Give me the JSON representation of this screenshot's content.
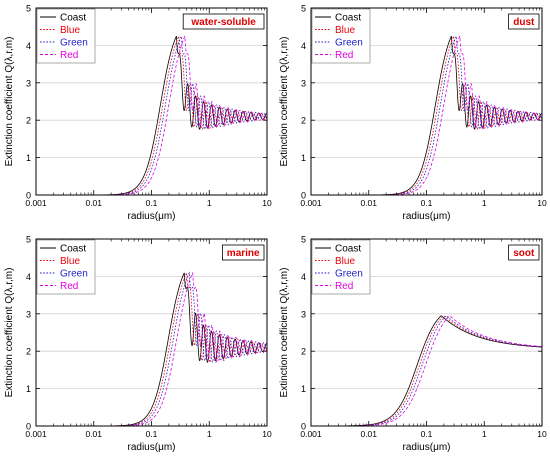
{
  "chart_data": [
    {
      "type": "line",
      "panel_label": "water-soluble",
      "xlabel": "radius(μm)",
      "ylabel": "Extinction coefficient Q(λ,r,m)",
      "xscale": "log",
      "xlim": [
        0.001,
        10
      ],
      "ylim": [
        0,
        5
      ],
      "xticks": [
        "0.001",
        "0.01",
        "0.1",
        "1",
        "10"
      ],
      "yticks": [
        "0",
        "1",
        "2",
        "3",
        "4",
        "5"
      ],
      "grid": "horizontal",
      "legend_position": "top-left",
      "params": {
        "peak_r": 0.27,
        "peak_q": 4.25,
        "ripple_amp": 0.8,
        "mode": "oscillating"
      },
      "series": [
        {
          "name": "Coast",
          "color": "#000000",
          "dash": "solid",
          "scale": 1.0
        },
        {
          "name": "Blue",
          "color": "#e8000b",
          "dash": "dotted",
          "scale": 1.1
        },
        {
          "name": "Green",
          "color": "#1f1fd0",
          "dash": "dotted",
          "scale": 1.22
        },
        {
          "name": "Red",
          "color": "#e000e0",
          "dash": "dashed",
          "scale": 1.4
        }
      ]
    },
    {
      "type": "line",
      "panel_label": "dust",
      "xlabel": "radius(μm)",
      "ylabel": "Extinction coefficient Q(λ,r,m)",
      "xscale": "log",
      "xlim": [
        0.001,
        10
      ],
      "ylim": [
        0,
        5
      ],
      "xticks": [
        "0.001",
        "0.01",
        "0.1",
        "1",
        "10"
      ],
      "yticks": [
        "0",
        "1",
        "2",
        "3",
        "4",
        "5"
      ],
      "grid": "horizontal",
      "legend_position": "top-left",
      "params": {
        "peak_r": 0.27,
        "peak_q": 4.25,
        "ripple_amp": 0.8,
        "mode": "oscillating"
      },
      "series": [
        {
          "name": "Coast",
          "color": "#000000",
          "dash": "solid",
          "scale": 1.0
        },
        {
          "name": "Blue",
          "color": "#e8000b",
          "dash": "dotted",
          "scale": 1.1
        },
        {
          "name": "Green",
          "color": "#1f1fd0",
          "dash": "dotted",
          "scale": 1.22
        },
        {
          "name": "Red",
          "color": "#e000e0",
          "dash": "dashed",
          "scale": 1.4
        }
      ]
    },
    {
      "type": "line",
      "panel_label": "marine",
      "xlabel": "radius(μm)",
      "ylabel": "Extinction coefficient Q(λ,r,m)",
      "xscale": "log",
      "xlim": [
        0.001,
        10
      ],
      "ylim": [
        0,
        5
      ],
      "xticks": [
        "0.001",
        "0.01",
        "0.1",
        "1",
        "10"
      ],
      "yticks": [
        "0",
        "1",
        "2",
        "3",
        "4",
        "5"
      ],
      "grid": "horizontal",
      "legend_position": "top-left",
      "params": {
        "peak_r": 0.37,
        "peak_q": 4.1,
        "ripple_amp": 0.9,
        "mode": "oscillating"
      },
      "series": [
        {
          "name": "Coast",
          "color": "#000000",
          "dash": "solid",
          "scale": 1.0
        },
        {
          "name": "Blue",
          "color": "#e8000b",
          "dash": "dotted",
          "scale": 1.1
        },
        {
          "name": "Green",
          "color": "#1f1fd0",
          "dash": "dotted",
          "scale": 1.22
        },
        {
          "name": "Red",
          "color": "#e000e0",
          "dash": "dashed",
          "scale": 1.4
        }
      ]
    },
    {
      "type": "line",
      "panel_label": "soot",
      "xlabel": "radius(μm)",
      "ylabel": "Extinction coefficient Q(λ,r,m)",
      "xscale": "log",
      "xlim": [
        0.001,
        10
      ],
      "ylim": [
        0,
        5
      ],
      "xticks": [
        "0.001",
        "0.01",
        "0.1",
        "1",
        "10"
      ],
      "yticks": [
        "0",
        "1",
        "2",
        "3",
        "4",
        "5"
      ],
      "grid": "horizontal",
      "legend_position": "top-left",
      "params": {
        "peak_r": 0.18,
        "peak_q": 2.95,
        "ripple_amp": 0,
        "mode": "smooth"
      },
      "series": [
        {
          "name": "Coast",
          "color": "#000000",
          "dash": "solid",
          "scale": 1.0
        },
        {
          "name": "Blue",
          "color": "#e8000b",
          "dash": "dotted",
          "scale": 1.1
        },
        {
          "name": "Green",
          "color": "#1f1fd0",
          "dash": "dotted",
          "scale": 1.22
        },
        {
          "name": "Red",
          "color": "#e000e0",
          "dash": "dashed",
          "scale": 1.4
        }
      ]
    }
  ]
}
